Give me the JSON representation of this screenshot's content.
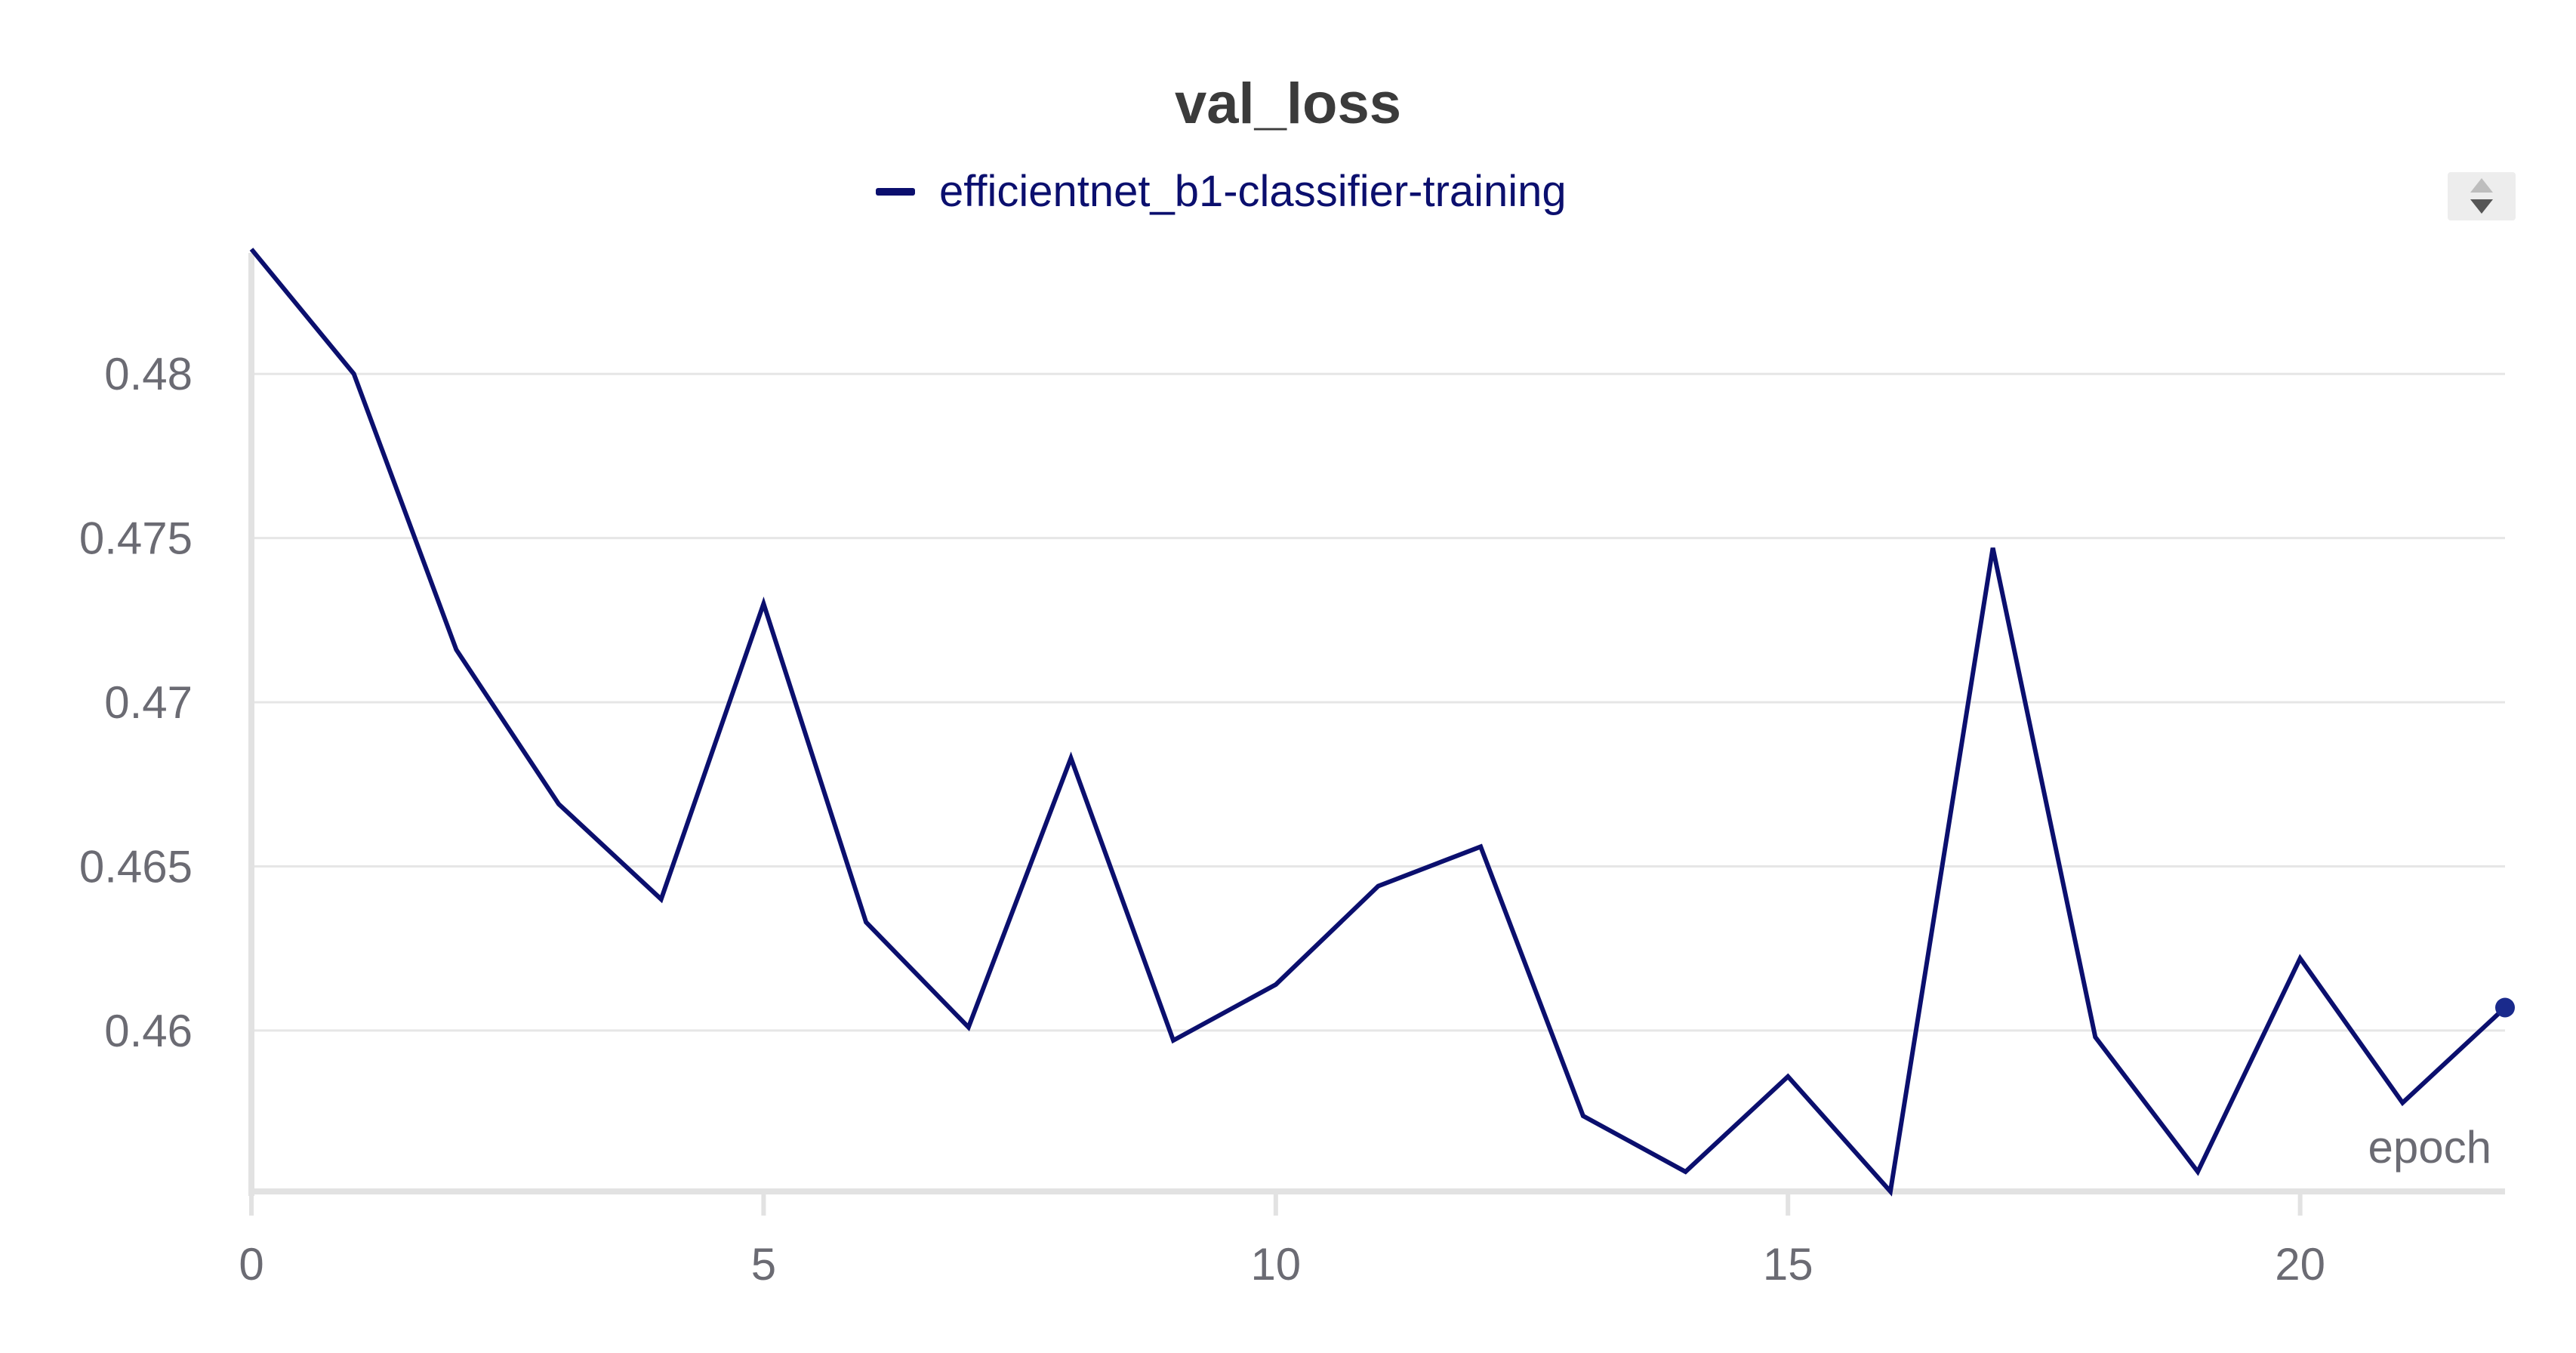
{
  "chart_data": {
    "type": "line",
    "title": "val_loss",
    "xlabel": "epoch",
    "ylabel": "",
    "grid": true,
    "legend_position": "top-center",
    "xlim": [
      0,
      22
    ],
    "ylim": [
      0.4551,
      0.4838
    ],
    "x_ticks": [
      0,
      5,
      10,
      15,
      20
    ],
    "x_tick_labels": [
      "0",
      "5",
      "10",
      "15",
      "20"
    ],
    "y_ticks": [
      0.46,
      0.465,
      0.47,
      0.475,
      0.48
    ],
    "y_tick_labels": [
      "0.46",
      "0.465",
      "0.47",
      "0.475",
      "0.48"
    ],
    "series": [
      {
        "name": "efficientnet_b1-classifier-training",
        "color": "#0b0f6e",
        "x": [
          0,
          1,
          2,
          3,
          4,
          5,
          6,
          7,
          8,
          9,
          10,
          11,
          12,
          13,
          14,
          15,
          16,
          17,
          18,
          19,
          20,
          21,
          22
        ],
        "values": [
          0.4838,
          0.48,
          0.4716,
          0.4669,
          0.464,
          0.473,
          0.4633,
          0.4601,
          0.4683,
          0.4597,
          0.4614,
          0.4644,
          0.4656,
          0.4574,
          0.4557,
          0.4586,
          0.4551,
          0.4747,
          0.4598,
          0.4557,
          0.4622,
          0.4578,
          0.4607
        ]
      }
    ]
  },
  "legend_scroll": {
    "up_icon": "triangle-up-icon",
    "down_icon": "triangle-down-icon"
  }
}
